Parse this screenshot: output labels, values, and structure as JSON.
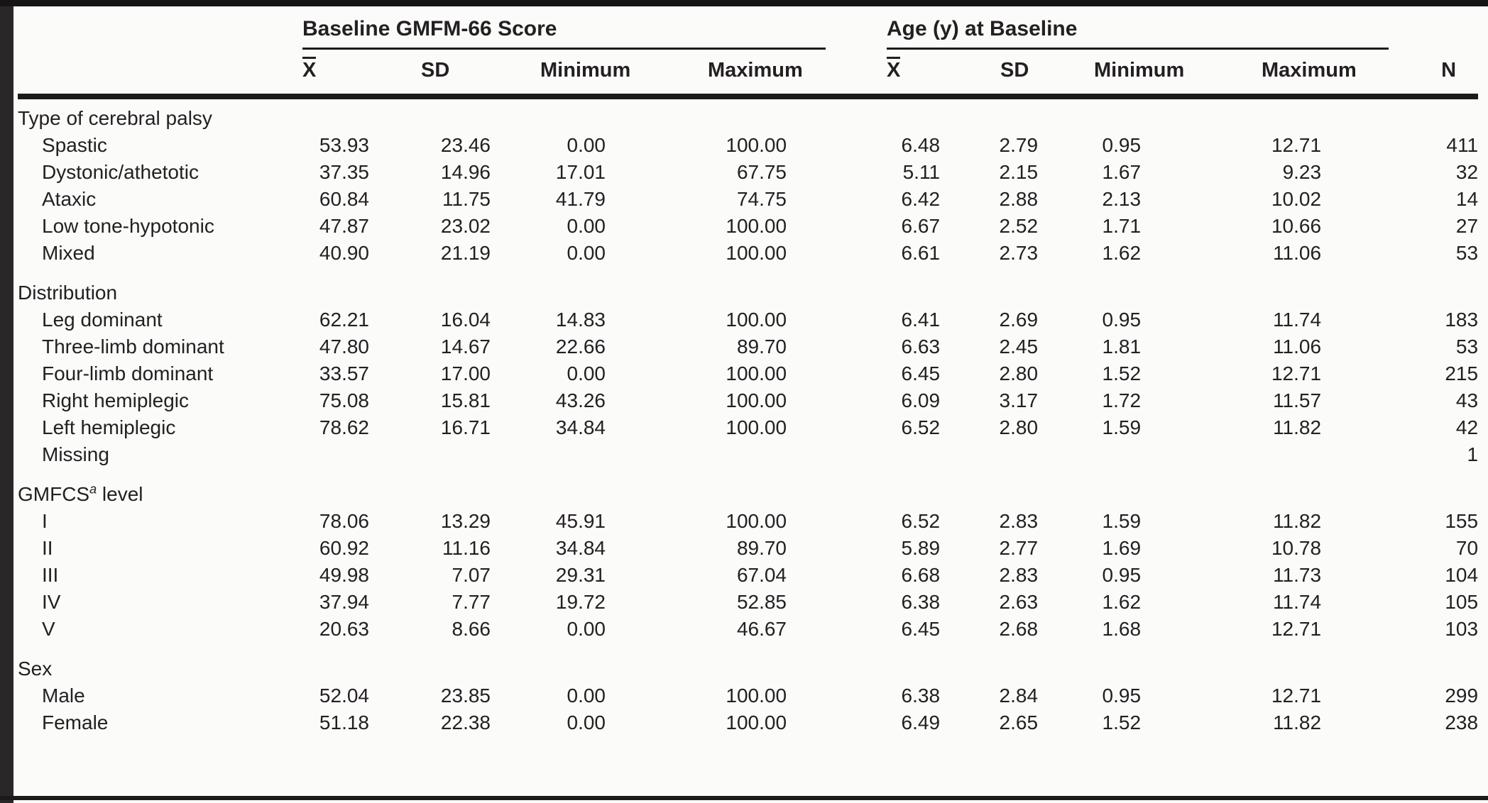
{
  "page": {
    "group_headers": [
      {
        "label": "Baseline GMFM-66 Score"
      },
      {
        "label": "Age (y) at Baseline"
      }
    ],
    "columns": [
      {
        "label": "X",
        "overline": true
      },
      {
        "label": "SD"
      },
      {
        "label": "Minimum"
      },
      {
        "label": "Maximum"
      },
      {
        "label": "X",
        "overline": true
      },
      {
        "label": "SD"
      },
      {
        "label": "Minimum"
      },
      {
        "label": "Maximum"
      },
      {
        "label": "N"
      }
    ],
    "sections": [
      {
        "header": {
          "text": "Type of cerebral palsy",
          "sup": "",
          "rest": ""
        },
        "rows": [
          {
            "label": "Spastic",
            "values": [
              "53.93",
              "23.46",
              "0.00",
              "100.00",
              "6.48",
              "2.79",
              "0.95",
              "12.71",
              "411"
            ]
          },
          {
            "label": "Dystonic/athetotic",
            "values": [
              "37.35",
              "14.96",
              "17.01",
              "67.75",
              "5.11",
              "2.15",
              "1.67",
              "9.23",
              "32"
            ]
          },
          {
            "label": "Ataxic",
            "values": [
              "60.84",
              "11.75",
              "41.79",
              "74.75",
              "6.42",
              "2.88",
              "2.13",
              "10.02",
              "14"
            ]
          },
          {
            "label": "Low tone-hypotonic",
            "values": [
              "47.87",
              "23.02",
              "0.00",
              "100.00",
              "6.67",
              "2.52",
              "1.71",
              "10.66",
              "27"
            ]
          },
          {
            "label": "Mixed",
            "values": [
              "40.90",
              "21.19",
              "0.00",
              "100.00",
              "6.61",
              "2.73",
              "1.62",
              "11.06",
              "53"
            ]
          }
        ]
      },
      {
        "header": {
          "text": "Distribution",
          "sup": "",
          "rest": ""
        },
        "rows": [
          {
            "label": "Leg dominant",
            "values": [
              "62.21",
              "16.04",
              "14.83",
              "100.00",
              "6.41",
              "2.69",
              "0.95",
              "11.74",
              "183"
            ]
          },
          {
            "label": "Three-limb dominant",
            "values": [
              "47.80",
              "14.67",
              "22.66",
              "89.70",
              "6.63",
              "2.45",
              "1.81",
              "11.06",
              "53"
            ]
          },
          {
            "label": "Four-limb dominant",
            "values": [
              "33.57",
              "17.00",
              "0.00",
              "100.00",
              "6.45",
              "2.80",
              "1.52",
              "12.71",
              "215"
            ]
          },
          {
            "label": "Right hemiplegic",
            "values": [
              "75.08",
              "15.81",
              "43.26",
              "100.00",
              "6.09",
              "3.17",
              "1.72",
              "11.57",
              "43"
            ]
          },
          {
            "label": "Left hemiplegic",
            "values": [
              "78.62",
              "16.71",
              "34.84",
              "100.00",
              "6.52",
              "2.80",
              "1.59",
              "11.82",
              "42"
            ]
          },
          {
            "label": "Missing",
            "values": [
              "",
              "",
              "",
              "",
              "",
              "",
              "",
              "",
              "1"
            ]
          }
        ]
      },
      {
        "header": {
          "text": "GMFCS",
          "sup": "a",
          "rest": " level"
        },
        "rows": [
          {
            "label": "I",
            "values": [
              "78.06",
              "13.29",
              "45.91",
              "100.00",
              "6.52",
              "2.83",
              "1.59",
              "11.82",
              "155"
            ]
          },
          {
            "label": "II",
            "values": [
              "60.92",
              "11.16",
              "34.84",
              "89.70",
              "5.89",
              "2.77",
              "1.69",
              "10.78",
              "70"
            ]
          },
          {
            "label": "III",
            "values": [
              "49.98",
              "7.07",
              "29.31",
              "67.04",
              "6.68",
              "2.83",
              "0.95",
              "11.73",
              "104"
            ]
          },
          {
            "label": "IV",
            "values": [
              "37.94",
              "7.77",
              "19.72",
              "52.85",
              "6.38",
              "2.63",
              "1.62",
              "11.74",
              "105"
            ]
          },
          {
            "label": "V",
            "values": [
              "20.63",
              "8.66",
              "0.00",
              "46.67",
              "6.45",
              "2.68",
              "1.68",
              "12.71",
              "103"
            ]
          }
        ]
      },
      {
        "header": {
          "text": "Sex",
          "sup": "",
          "rest": ""
        },
        "rows": [
          {
            "label": "Male",
            "values": [
              "52.04",
              "23.85",
              "0.00",
              "100.00",
              "6.38",
              "2.84",
              "0.95",
              "12.71",
              "299"
            ]
          },
          {
            "label": "Female",
            "values": [
              "51.18",
              "22.38",
              "0.00",
              "100.00",
              "6.49",
              "2.65",
              "1.52",
              "11.82",
              "238"
            ]
          }
        ]
      }
    ]
  }
}
